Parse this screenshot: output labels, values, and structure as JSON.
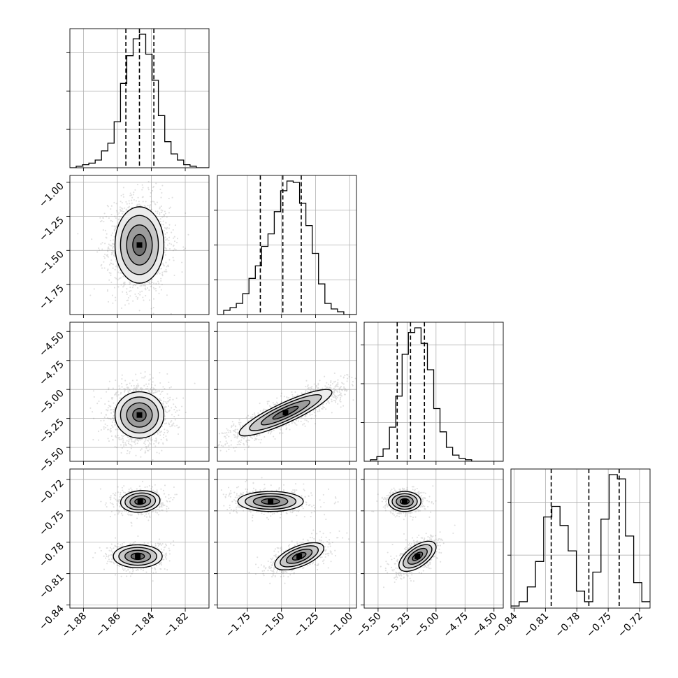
{
  "chart_data": {
    "type": "corner",
    "variables": [
      {
        "range": [
          -1.888,
          -1.806
        ],
        "ticks": [
          -1.88,
          -1.86,
          -1.84,
          -1.82
        ],
        "tick_labels": [
          "−1.88",
          "−1.86",
          "−1.84",
          "−1.82"
        ]
      },
      {
        "range": [
          -1.97,
          -0.95
        ],
        "ticks": [
          -1.75,
          -1.5,
          -1.25,
          -1.0
        ],
        "tick_labels": [
          "−1.75",
          "−1.50",
          "−1.25",
          "−1.00"
        ]
      },
      {
        "range": [
          -5.62,
          -4.42
        ],
        "ticks": [
          -5.5,
          -5.25,
          -5.0,
          -4.75,
          -4.5
        ],
        "tick_labels": [
          "−5.50",
          "−5.25",
          "−5.00",
          "−4.75",
          "−4.50"
        ]
      },
      {
        "range": [
          -0.843,
          -0.71
        ],
        "ticks": [
          -0.84,
          -0.81,
          -0.78,
          -0.75,
          -0.72
        ],
        "tick_labels": [
          "−0.84",
          "−0.81",
          "−0.78",
          "−0.75",
          "−0.72"
        ]
      }
    ],
    "marginals": [
      {
        "variable": 0,
        "quantiles": [
          -1.855,
          -1.847,
          -1.8385
        ],
        "bins": [
          -1.888,
          -1.806
        ],
        "counts": [
          0,
          1,
          2,
          3,
          5,
          11,
          16,
          30,
          55,
          73,
          84,
          87,
          74,
          57,
          34,
          17,
          9,
          5,
          2,
          1,
          0,
          0
        ]
      },
      {
        "variable": 1,
        "quantiles": [
          -1.655,
          -1.49,
          -1.355
        ],
        "bins": [
          -1.97,
          -0.95
        ],
        "counts": [
          0,
          3,
          5,
          8,
          15,
          26,
          35,
          49,
          58,
          74,
          89,
          96,
          95,
          80,
          64,
          44,
          22,
          8,
          4,
          2,
          0,
          0
        ]
      },
      {
        "variable": 2,
        "quantiles": [
          -5.335,
          -5.22,
          -5.1
        ],
        "bins": [
          -5.62,
          -4.42
        ],
        "counts": [
          0,
          1,
          3,
          8,
          22,
          42,
          69,
          83,
          86,
          76,
          59,
          34,
          19,
          9,
          4,
          2,
          1,
          0,
          0,
          0,
          0,
          0
        ]
      },
      {
        "variable": 3,
        "quantiles": [
          -0.8045,
          -0.7685,
          -0.7395
        ],
        "bins": [
          -0.843,
          -0.71
        ],
        "counts": [
          1,
          3,
          10,
          22,
          43,
          48,
          39,
          27,
          8,
          3,
          17,
          42,
          63,
          61,
          34,
          12,
          3
        ]
      }
    ],
    "pairs": [
      {
        "x_var": 0,
        "y_var": 1,
        "modes": [
          {
            "cx": -1.847,
            "cy": -1.46,
            "sx": 0.0072,
            "sy": 0.14,
            "rho": 0.0,
            "w": 1
          }
        ]
      },
      {
        "x_var": 0,
        "y_var": 2,
        "modes": [
          {
            "cx": -1.847,
            "cy": -5.22,
            "sx": 0.0072,
            "sy": 0.1,
            "rho": 0.0,
            "w": 1
          }
        ]
      },
      {
        "x_var": 1,
        "y_var": 2,
        "modes": [
          {
            "cx": -1.47,
            "cy": -5.2,
            "sx": 0.17,
            "sy": 0.1,
            "rho": 0.88,
            "w": 1
          }
        ]
      },
      {
        "x_var": 0,
        "y_var": 3,
        "modes": [
          {
            "cx": -1.8465,
            "cy": -0.741,
            "sx": 0.0058,
            "sy": 0.0052,
            "rho": 0.1,
            "w": 0.5
          },
          {
            "cx": -1.848,
            "cy": -0.7935,
            "sx": 0.0072,
            "sy": 0.0055,
            "rho": 0.0,
            "w": 0.5
          }
        ]
      },
      {
        "x_var": 1,
        "y_var": 3,
        "modes": [
          {
            "cx": -1.58,
            "cy": -0.741,
            "sx": 0.12,
            "sy": 0.0048,
            "rho": 0.0,
            "w": 0.5
          },
          {
            "cx": -1.37,
            "cy": -0.7935,
            "sx": 0.09,
            "sy": 0.0065,
            "rho": 0.6,
            "w": 0.5
          }
        ]
      },
      {
        "x_var": 2,
        "y_var": 3,
        "modes": [
          {
            "cx": -5.27,
            "cy": -0.741,
            "sx": 0.07,
            "sy": 0.0048,
            "rho": 0.0,
            "w": 0.5
          },
          {
            "cx": -5.16,
            "cy": -0.7935,
            "sx": 0.08,
            "sy": 0.0072,
            "rho": 0.6,
            "w": 0.5
          }
        ]
      }
    ],
    "grid": true,
    "scatter_color": "#808080",
    "line_color": "#000000",
    "quantile_line_style": "dashed"
  }
}
